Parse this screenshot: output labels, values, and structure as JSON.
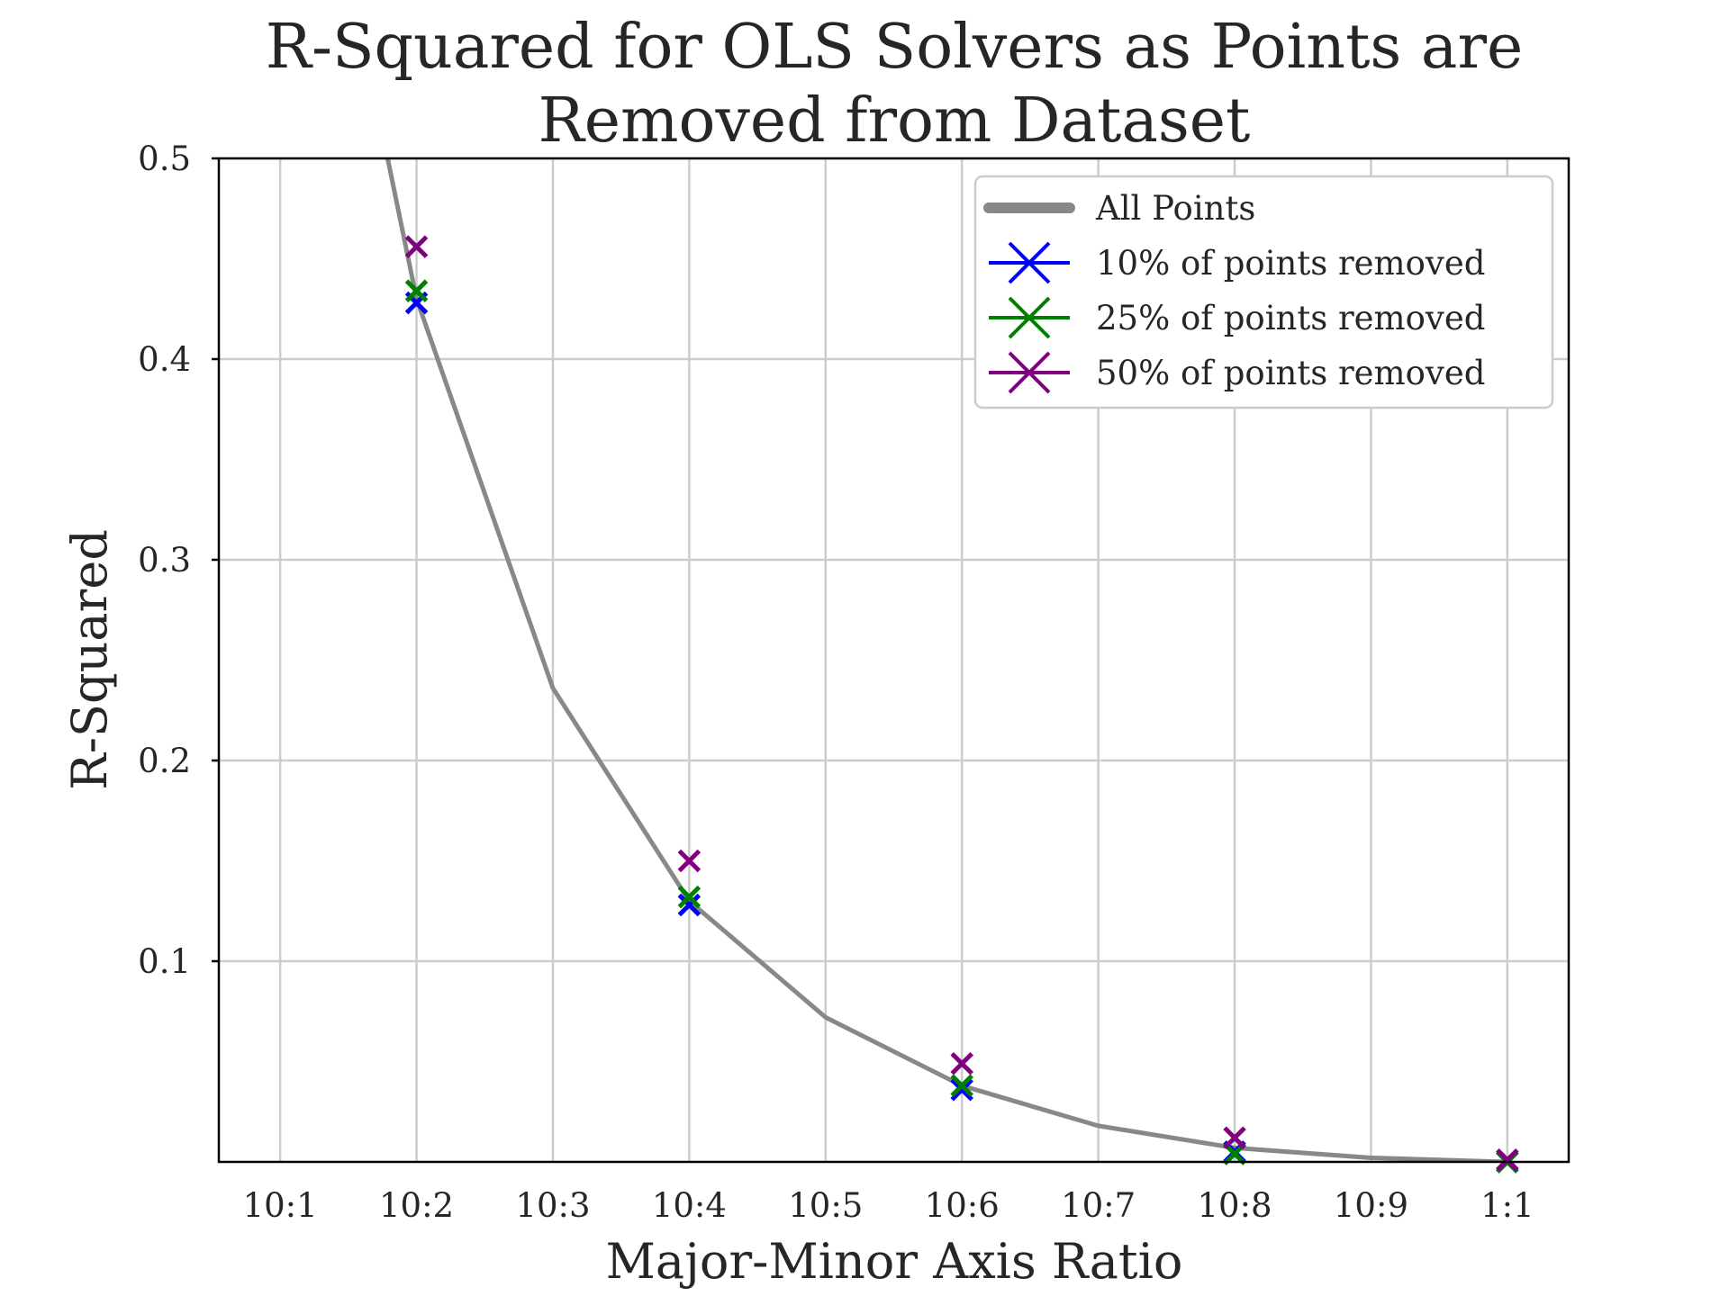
{
  "chart_data": {
    "type": "line",
    "title": [
      "R-Squared for OLS Solvers as Points are",
      "Removed from Dataset"
    ],
    "xlabel": "Major-Minor Axis Ratio",
    "ylabel": "R-Squared",
    "categories": [
      "10:1",
      "10:2",
      "10:3",
      "10:4",
      "10:5",
      "10:6",
      "10:7",
      "10:8",
      "10:9",
      "1:1"
    ],
    "x_range": [
      -0.45,
      9.45
    ],
    "ylim": [
      0.0,
      0.5
    ],
    "y_ticks": [
      0.1,
      0.2,
      0.3,
      0.4,
      0.5
    ],
    "y_tick_labels": [
      "0.1",
      "0.2",
      "0.3",
      "0.4",
      "0.5"
    ],
    "grid": true,
    "legend_position": "top-right",
    "series": [
      {
        "name": "All Points",
        "kind": "line",
        "color": "#888888",
        "x": [
          0,
          1,
          2,
          3,
          4,
          5,
          6,
          7,
          8,
          9
        ],
        "values": [
          0.76,
          0.43,
          0.236,
          0.13,
          0.072,
          0.038,
          0.018,
          0.007,
          0.002,
          0.0
        ]
      },
      {
        "name": "10% of points removed",
        "kind": "marker",
        "color": "#0000ff",
        "x": [
          1,
          3,
          5,
          7,
          9
        ],
        "values": [
          0.428,
          0.128,
          0.036,
          0.005,
          0.0
        ]
      },
      {
        "name": "25% of points removed",
        "kind": "marker",
        "color": "#008000",
        "x": [
          1,
          3,
          5,
          7,
          9
        ],
        "values": [
          0.434,
          0.132,
          0.038,
          0.004,
          0.0
        ]
      },
      {
        "name": "50% of points removed",
        "kind": "marker",
        "color": "#800080",
        "x": [
          1,
          3,
          5,
          7,
          9
        ],
        "values": [
          0.456,
          0.15,
          0.049,
          0.012,
          0.001
        ]
      }
    ]
  }
}
